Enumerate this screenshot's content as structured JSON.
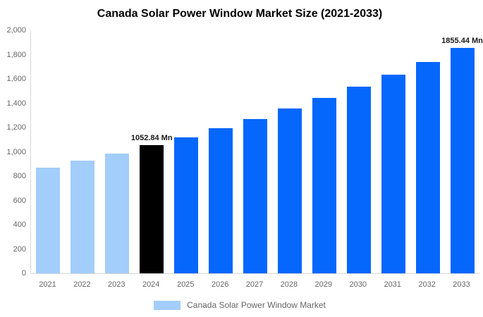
{
  "chart_data": {
    "type": "bar",
    "title": "Canada Solar Power Window Market Size (2021-2033)",
    "series_name": "Canada Solar Power Window Market",
    "unit": "Mn",
    "categories": [
      "2021",
      "2022",
      "2023",
      "2024",
      "2025",
      "2026",
      "2027",
      "2028",
      "2029",
      "2030",
      "2031",
      "2032",
      "2033"
    ],
    "values": [
      871.66,
      928.3,
      988.6,
      1052.84,
      1121.26,
      1194.12,
      1271.72,
      1354.35,
      1442.37,
      1536.1,
      1635.92,
      1742.23,
      1855.44
    ],
    "bar_color_roles": [
      "past",
      "past",
      "past",
      "current",
      "forecast",
      "forecast",
      "forecast",
      "forecast",
      "forecast",
      "forecast",
      "forecast",
      "forecast",
      "forecast"
    ],
    "annotations": [
      {
        "category": "2024",
        "text": "1052.84 Mn"
      },
      {
        "category": "2033",
        "text": "1855.44 Mn"
      }
    ],
    "xlabel": "",
    "ylabel": "",
    "ylim": [
      0,
      2000
    ],
    "y_tick_step": 200,
    "y_tick_labels": [
      "0",
      "200",
      "400",
      "600",
      "800",
      "1,000",
      "1,200",
      "1,400",
      "1,600",
      "1,800",
      "2,000"
    ],
    "grid": false,
    "legend_position": "bottom",
    "colors": {
      "past": "#A3CDFA",
      "current": "#000000",
      "forecast": "#0667FD",
      "axis_line": "#D9D9D9",
      "tick_text": "#666666",
      "title_text": "#000000",
      "annotation_text": "#1a1a1a"
    }
  }
}
